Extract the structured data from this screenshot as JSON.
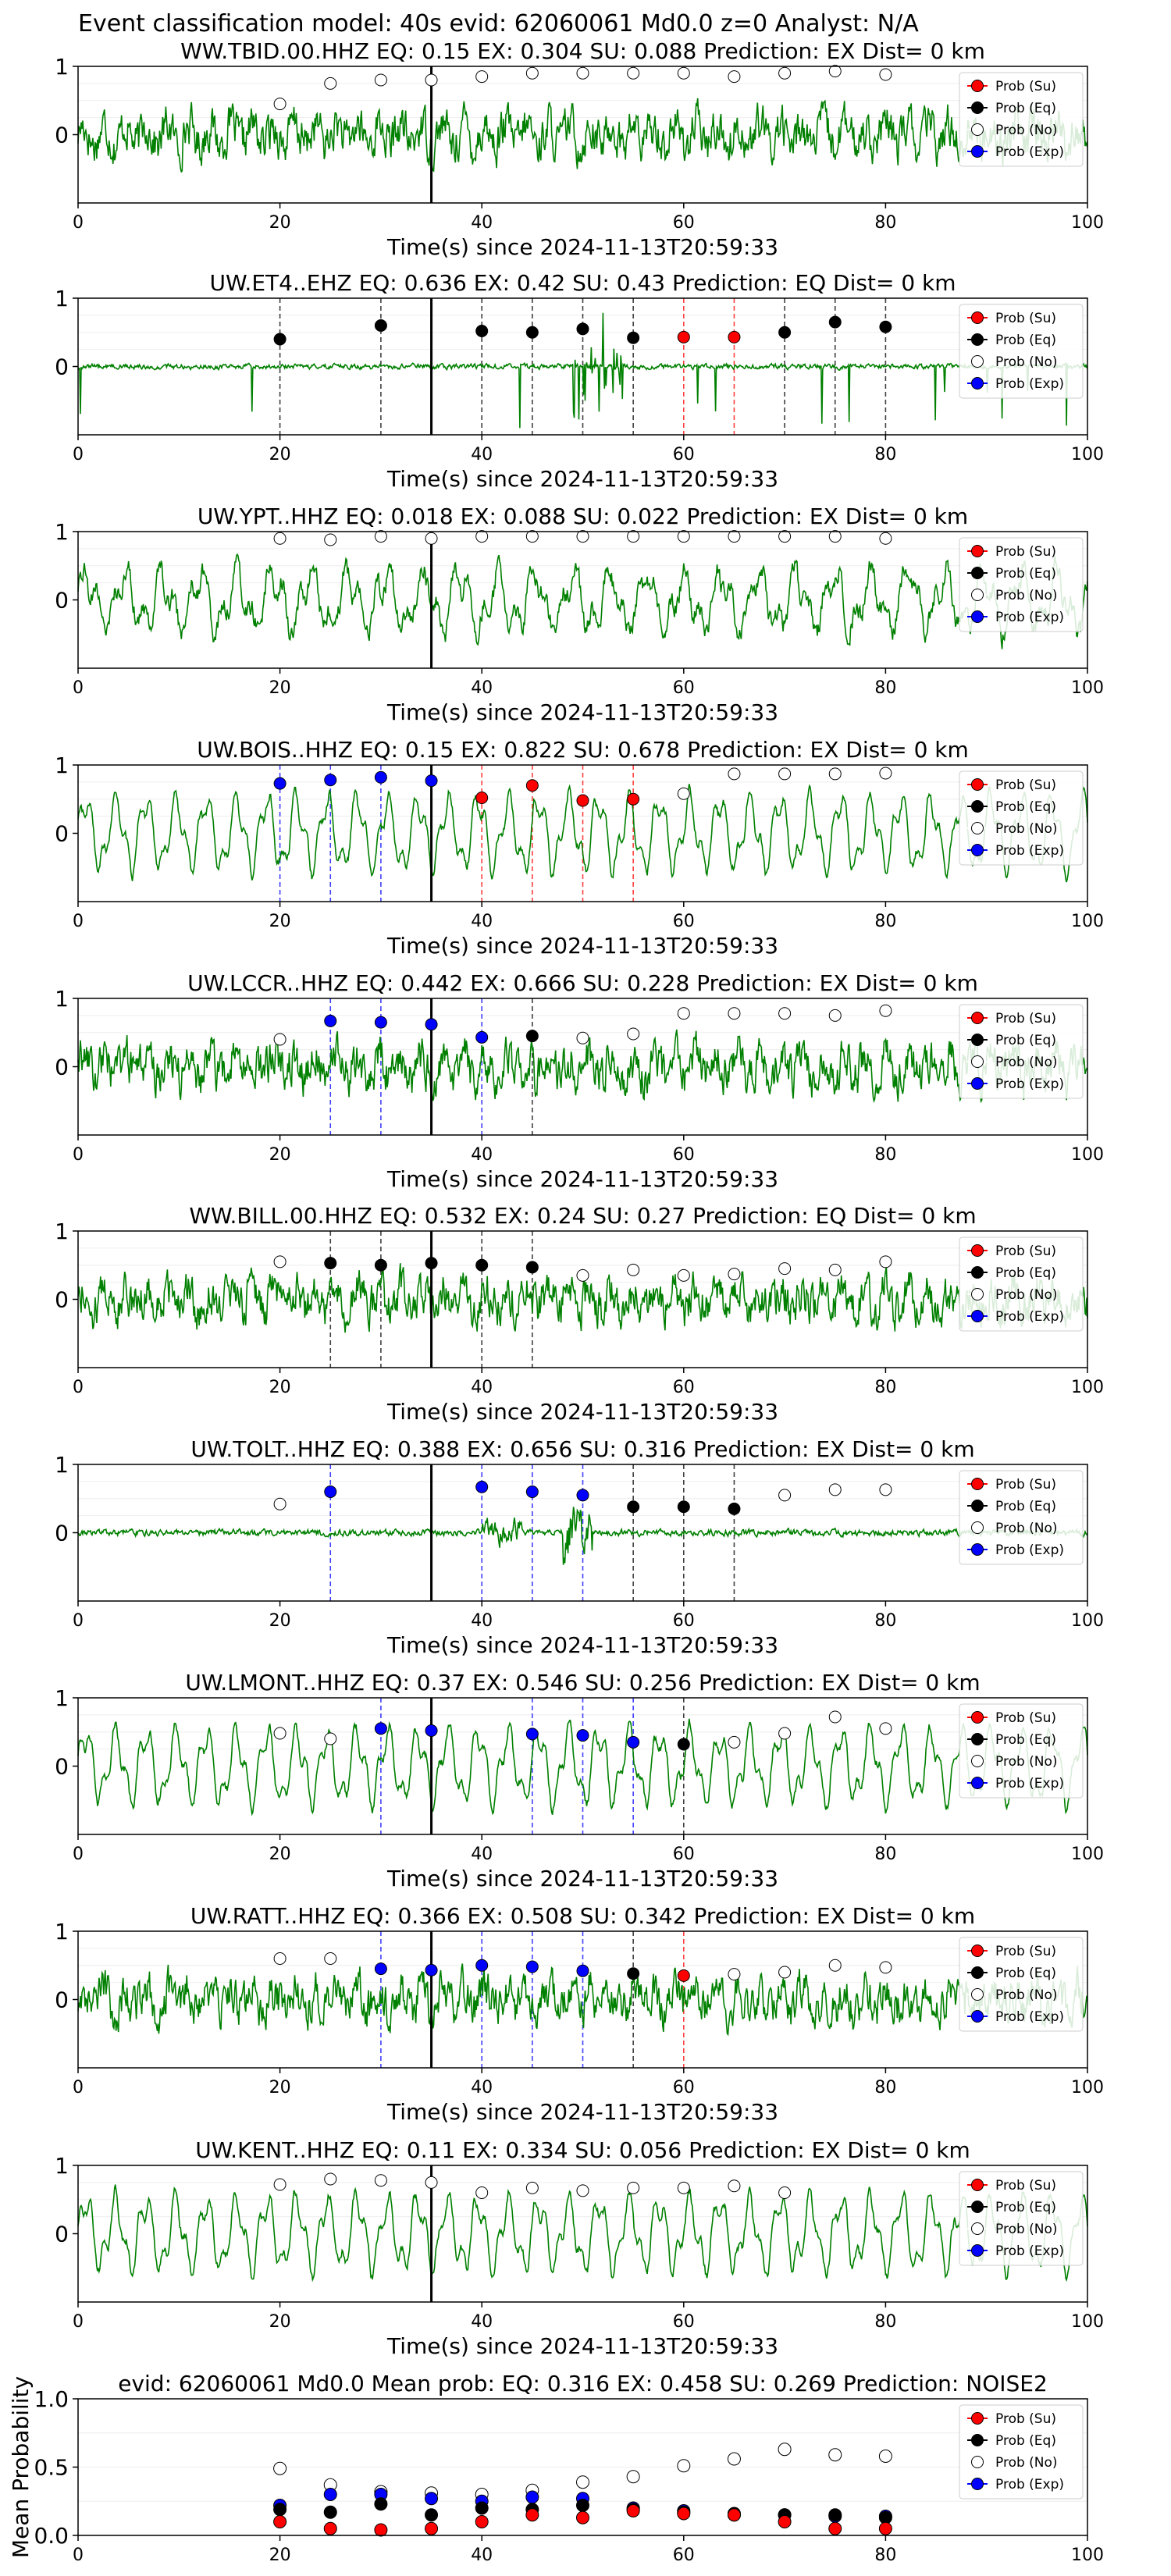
{
  "figure_title": "Event classification model: 40s evid: 62060061 Md0.0 z=0 Analyst: N/A",
  "legend_labels": [
    "Prob (Su)",
    "Prob (Eq)",
    "Prob (No)",
    "Prob (Exp)"
  ],
  "colors": {
    "su": "#ff0000",
    "eq": "#000000",
    "no": "#ffffff",
    "exp": "#0000ff",
    "waveform": "#008000"
  },
  "chart_data": [
    {
      "type": "line",
      "title": "WW.TBID.00.HHZ   EQ: 0.15   EX: 0.304   SU: 0.088   Prediction: EX    Dist= 0 km",
      "xlabel": "Time(s) since 2024-11-13T20:59:33",
      "ylabel": "",
      "xlim": [
        0,
        100
      ],
      "ylim": [
        -1,
        1
      ],
      "xticks": [
        0,
        20,
        40,
        60,
        80,
        100
      ],
      "yticks": [
        0,
        1
      ],
      "origin_time": 35,
      "waveform": "noise",
      "points": [
        {
          "x": 20,
          "y": 0.45,
          "c": "no"
        },
        {
          "x": 25,
          "y": 0.75,
          "c": "no"
        },
        {
          "x": 30,
          "y": 0.8,
          "c": "no"
        },
        {
          "x": 35,
          "y": 0.8,
          "c": "no"
        },
        {
          "x": 40,
          "y": 0.85,
          "c": "no"
        },
        {
          "x": 45,
          "y": 0.9,
          "c": "no"
        },
        {
          "x": 50,
          "y": 0.9,
          "c": "no"
        },
        {
          "x": 55,
          "y": 0.9,
          "c": "no"
        },
        {
          "x": 60,
          "y": 0.9,
          "c": "no"
        },
        {
          "x": 65,
          "y": 0.85,
          "c": "no"
        },
        {
          "x": 70,
          "y": 0.9,
          "c": "no"
        },
        {
          "x": 75,
          "y": 0.93,
          "c": "no"
        },
        {
          "x": 80,
          "y": 0.88,
          "c": "no"
        }
      ]
    },
    {
      "type": "line",
      "title": "UW.ET4..EHZ   EQ: 0.636   EX: 0.42   SU: 0.43   Prediction: EQ    Dist= 0 km",
      "xlabel": "Time(s) since 2024-11-13T20:59:33",
      "ylabel": "",
      "xlim": [
        0,
        100
      ],
      "ylim": [
        -1,
        1
      ],
      "xticks": [
        0,
        20,
        40,
        60,
        80,
        100
      ],
      "yticks": [
        0,
        1
      ],
      "origin_time": 35,
      "waveform": "spiky",
      "points": [
        {
          "x": 20,
          "y": 0.4,
          "c": "eq"
        },
        {
          "x": 30,
          "y": 0.6,
          "c": "eq"
        },
        {
          "x": 40,
          "y": 0.52,
          "c": "eq"
        },
        {
          "x": 45,
          "y": 0.5,
          "c": "eq"
        },
        {
          "x": 50,
          "y": 0.55,
          "c": "eq"
        },
        {
          "x": 55,
          "y": 0.42,
          "c": "eq"
        },
        {
          "x": 60,
          "y": 0.43,
          "c": "su"
        },
        {
          "x": 65,
          "y": 0.43,
          "c": "su"
        },
        {
          "x": 70,
          "y": 0.5,
          "c": "eq"
        },
        {
          "x": 75,
          "y": 0.65,
          "c": "eq"
        },
        {
          "x": 80,
          "y": 0.58,
          "c": "eq"
        }
      ]
    },
    {
      "type": "line",
      "title": "UW.YPT..HHZ   EQ: 0.018   EX: 0.088   SU: 0.022   Prediction: EX    Dist= 0 km",
      "xlabel": "Time(s) since 2024-11-13T20:59:33",
      "ylabel": "",
      "xlim": [
        0,
        100
      ],
      "ylim": [
        -1,
        1
      ],
      "xticks": [
        0,
        20,
        40,
        60,
        80,
        100
      ],
      "yticks": [
        0,
        1
      ],
      "origin_time": 35,
      "waveform": "mid",
      "points": [
        {
          "x": 20,
          "y": 0.9,
          "c": "no"
        },
        {
          "x": 25,
          "y": 0.88,
          "c": "no"
        },
        {
          "x": 30,
          "y": 0.93,
          "c": "no"
        },
        {
          "x": 35,
          "y": 0.9,
          "c": "no"
        },
        {
          "x": 40,
          "y": 0.93,
          "c": "no"
        },
        {
          "x": 45,
          "y": 0.93,
          "c": "no"
        },
        {
          "x": 50,
          "y": 0.93,
          "c": "no"
        },
        {
          "x": 55,
          "y": 0.93,
          "c": "no"
        },
        {
          "x": 60,
          "y": 0.93,
          "c": "no"
        },
        {
          "x": 65,
          "y": 0.93,
          "c": "no"
        },
        {
          "x": 70,
          "y": 0.93,
          "c": "no"
        },
        {
          "x": 75,
          "y": 0.93,
          "c": "no"
        },
        {
          "x": 80,
          "y": 0.9,
          "c": "no"
        }
      ]
    },
    {
      "type": "line",
      "title": "UW.BOIS..HHZ   EQ: 0.15   EX: 0.822   SU: 0.678   Prediction: EX    Dist= 0 km",
      "xlabel": "Time(s) since 2024-11-13T20:59:33",
      "ylabel": "",
      "xlim": [
        0,
        100
      ],
      "ylim": [
        -1,
        1
      ],
      "xticks": [
        0,
        20,
        40,
        60,
        80,
        100
      ],
      "yticks": [
        0,
        1
      ],
      "origin_time": 35,
      "waveform": "smooth",
      "points": [
        {
          "x": 20,
          "y": 0.73,
          "c": "exp"
        },
        {
          "x": 25,
          "y": 0.78,
          "c": "exp"
        },
        {
          "x": 30,
          "y": 0.82,
          "c": "exp"
        },
        {
          "x": 35,
          "y": 0.77,
          "c": "exp"
        },
        {
          "x": 40,
          "y": 0.52,
          "c": "su"
        },
        {
          "x": 45,
          "y": 0.7,
          "c": "su"
        },
        {
          "x": 50,
          "y": 0.48,
          "c": "su"
        },
        {
          "x": 55,
          "y": 0.5,
          "c": "su"
        },
        {
          "x": 60,
          "y": 0.58,
          "c": "no"
        },
        {
          "x": 65,
          "y": 0.87,
          "c": "no"
        },
        {
          "x": 70,
          "y": 0.87,
          "c": "no"
        },
        {
          "x": 75,
          "y": 0.87,
          "c": "no"
        },
        {
          "x": 80,
          "y": 0.88,
          "c": "no"
        }
      ]
    },
    {
      "type": "line",
      "title": "UW.LCCR..HHZ   EQ: 0.442   EX: 0.666   SU: 0.228   Prediction: EX    Dist= 0 km",
      "xlabel": "Time(s) since 2024-11-13T20:59:33",
      "ylabel": "",
      "xlim": [
        0,
        100
      ],
      "ylim": [
        -1,
        1
      ],
      "xticks": [
        0,
        20,
        40,
        60,
        80,
        100
      ],
      "yticks": [
        0,
        1
      ],
      "origin_time": 35,
      "waveform": "noise",
      "points": [
        {
          "x": 20,
          "y": 0.4,
          "c": "no"
        },
        {
          "x": 25,
          "y": 0.67,
          "c": "exp"
        },
        {
          "x": 30,
          "y": 0.65,
          "c": "exp"
        },
        {
          "x": 35,
          "y": 0.62,
          "c": "exp"
        },
        {
          "x": 40,
          "y": 0.43,
          "c": "exp"
        },
        {
          "x": 45,
          "y": 0.45,
          "c": "eq"
        },
        {
          "x": 50,
          "y": 0.42,
          "c": "no"
        },
        {
          "x": 55,
          "y": 0.48,
          "c": "no"
        },
        {
          "x": 60,
          "y": 0.78,
          "c": "no"
        },
        {
          "x": 65,
          "y": 0.78,
          "c": "no"
        },
        {
          "x": 70,
          "y": 0.78,
          "c": "no"
        },
        {
          "x": 75,
          "y": 0.75,
          "c": "no"
        },
        {
          "x": 80,
          "y": 0.82,
          "c": "no"
        }
      ]
    },
    {
      "type": "line",
      "title": "WW.BILL.00.HHZ   EQ: 0.532   EX: 0.24   SU: 0.27   Prediction: EQ    Dist= 0 km",
      "xlabel": "Time(s) since 2024-11-13T20:59:33",
      "ylabel": "",
      "xlim": [
        0,
        100
      ],
      "ylim": [
        -1,
        1
      ],
      "xticks": [
        0,
        20,
        40,
        60,
        80,
        100
      ],
      "yticks": [
        0,
        1
      ],
      "origin_time": 35,
      "waveform": "noise",
      "points": [
        {
          "x": 20,
          "y": 0.55,
          "c": "no"
        },
        {
          "x": 25,
          "y": 0.53,
          "c": "eq"
        },
        {
          "x": 30,
          "y": 0.5,
          "c": "eq"
        },
        {
          "x": 35,
          "y": 0.53,
          "c": "eq"
        },
        {
          "x": 40,
          "y": 0.5,
          "c": "eq"
        },
        {
          "x": 45,
          "y": 0.47,
          "c": "eq"
        },
        {
          "x": 50,
          "y": 0.35,
          "c": "no"
        },
        {
          "x": 55,
          "y": 0.43,
          "c": "no"
        },
        {
          "x": 60,
          "y": 0.35,
          "c": "no"
        },
        {
          "x": 65,
          "y": 0.37,
          "c": "no"
        },
        {
          "x": 70,
          "y": 0.45,
          "c": "no"
        },
        {
          "x": 75,
          "y": 0.43,
          "c": "no"
        },
        {
          "x": 80,
          "y": 0.55,
          "c": "no"
        }
      ]
    },
    {
      "type": "line",
      "title": "UW.TOLT..HHZ   EQ: 0.388   EX: 0.656   SU: 0.316   Prediction: EX    Dist= 0 km",
      "xlabel": "Time(s) since 2024-11-13T20:59:33",
      "ylabel": "",
      "xlim": [
        0,
        100
      ],
      "ylim": [
        -1,
        1
      ],
      "xticks": [
        0,
        20,
        40,
        60,
        80,
        100
      ],
      "yticks": [
        0,
        1
      ],
      "origin_time": 35,
      "waveform": "quiet",
      "points": [
        {
          "x": 20,
          "y": 0.42,
          "c": "no"
        },
        {
          "x": 25,
          "y": 0.6,
          "c": "exp"
        },
        {
          "x": 40,
          "y": 0.67,
          "c": "exp"
        },
        {
          "x": 45,
          "y": 0.6,
          "c": "exp"
        },
        {
          "x": 50,
          "y": 0.55,
          "c": "exp"
        },
        {
          "x": 55,
          "y": 0.38,
          "c": "eq"
        },
        {
          "x": 60,
          "y": 0.38,
          "c": "eq"
        },
        {
          "x": 65,
          "y": 0.35,
          "c": "eq"
        },
        {
          "x": 70,
          "y": 0.55,
          "c": "no"
        },
        {
          "x": 75,
          "y": 0.63,
          "c": "no"
        },
        {
          "x": 80,
          "y": 0.63,
          "c": "no"
        }
      ]
    },
    {
      "type": "line",
      "title": "UW.LMONT..HHZ   EQ: 0.37   EX: 0.546   SU: 0.256   Prediction: EX    Dist= 0 km",
      "xlabel": "Time(s) since 2024-11-13T20:59:33",
      "ylabel": "",
      "xlim": [
        0,
        100
      ],
      "ylim": [
        -1,
        1
      ],
      "xticks": [
        0,
        20,
        40,
        60,
        80,
        100
      ],
      "yticks": [
        0,
        1
      ],
      "origin_time": 35,
      "waveform": "smooth",
      "points": [
        {
          "x": 20,
          "y": 0.48,
          "c": "no"
        },
        {
          "x": 25,
          "y": 0.4,
          "c": "no"
        },
        {
          "x": 30,
          "y": 0.55,
          "c": "exp"
        },
        {
          "x": 35,
          "y": 0.52,
          "c": "exp"
        },
        {
          "x": 45,
          "y": 0.47,
          "c": "exp"
        },
        {
          "x": 50,
          "y": 0.45,
          "c": "exp"
        },
        {
          "x": 55,
          "y": 0.35,
          "c": "exp"
        },
        {
          "x": 60,
          "y": 0.32,
          "c": "eq"
        },
        {
          "x": 65,
          "y": 0.35,
          "c": "no"
        },
        {
          "x": 70,
          "y": 0.48,
          "c": "no"
        },
        {
          "x": 75,
          "y": 0.72,
          "c": "no"
        },
        {
          "x": 80,
          "y": 0.55,
          "c": "no"
        }
      ]
    },
    {
      "type": "line",
      "title": "UW.RATT..HHZ   EQ: 0.366   EX: 0.508   SU: 0.342   Prediction: EX    Dist= 0 km",
      "xlabel": "Time(s) since 2024-11-13T20:59:33",
      "ylabel": "",
      "xlim": [
        0,
        100
      ],
      "ylim": [
        -1,
        1
      ],
      "xticks": [
        0,
        20,
        40,
        60,
        80,
        100
      ],
      "yticks": [
        0,
        1
      ],
      "origin_time": 35,
      "waveform": "noise",
      "points": [
        {
          "x": 20,
          "y": 0.6,
          "c": "no"
        },
        {
          "x": 25,
          "y": 0.6,
          "c": "no"
        },
        {
          "x": 30,
          "y": 0.45,
          "c": "exp"
        },
        {
          "x": 35,
          "y": 0.43,
          "c": "exp"
        },
        {
          "x": 40,
          "y": 0.5,
          "c": "exp"
        },
        {
          "x": 45,
          "y": 0.48,
          "c": "exp"
        },
        {
          "x": 50,
          "y": 0.42,
          "c": "exp"
        },
        {
          "x": 55,
          "y": 0.38,
          "c": "eq"
        },
        {
          "x": 60,
          "y": 0.35,
          "c": "su"
        },
        {
          "x": 65,
          "y": 0.37,
          "c": "no"
        },
        {
          "x": 70,
          "y": 0.4,
          "c": "no"
        },
        {
          "x": 75,
          "y": 0.5,
          "c": "no"
        },
        {
          "x": 80,
          "y": 0.47,
          "c": "no"
        }
      ]
    },
    {
      "type": "line",
      "title": "UW.KENT..HHZ   EQ: 0.11   EX: 0.334   SU: 0.056   Prediction: EX    Dist= 0 km",
      "xlabel": "Time(s) since 2024-11-13T20:59:33",
      "ylabel": "",
      "xlim": [
        0,
        100
      ],
      "ylim": [
        -1,
        1
      ],
      "xticks": [
        0,
        20,
        40,
        60,
        80,
        100
      ],
      "yticks": [
        0,
        1
      ],
      "origin_time": 35,
      "waveform": "smooth",
      "points": [
        {
          "x": 20,
          "y": 0.72,
          "c": "no"
        },
        {
          "x": 25,
          "y": 0.8,
          "c": "no"
        },
        {
          "x": 30,
          "y": 0.78,
          "c": "no"
        },
        {
          "x": 35,
          "y": 0.75,
          "c": "no"
        },
        {
          "x": 40,
          "y": 0.6,
          "c": "no"
        },
        {
          "x": 45,
          "y": 0.67,
          "c": "no"
        },
        {
          "x": 50,
          "y": 0.63,
          "c": "no"
        },
        {
          "x": 55,
          "y": 0.67,
          "c": "no"
        },
        {
          "x": 60,
          "y": 0.67,
          "c": "no"
        },
        {
          "x": 65,
          "y": 0.7,
          "c": "no"
        },
        {
          "x": 70,
          "y": 0.6,
          "c": "no"
        }
      ]
    },
    {
      "type": "scatter",
      "title": "evid: 62060061   Md0.0   Mean prob:   EQ: 0.316   EX: 0.458   SU: 0.269   Prediction: NOISE2",
      "xlabel": "",
      "ylabel": "Mean Probability",
      "xlim": [
        0,
        100
      ],
      "ylim": [
        0,
        1
      ],
      "xticks": [
        0,
        20,
        40,
        60,
        80,
        100
      ],
      "yticks": [
        0.0,
        0.5,
        1.0
      ],
      "ytick_labels": [
        "0.0",
        "0.5",
        "1.0"
      ],
      "series": [
        {
          "name": "Prob (No)",
          "c": "no",
          "x": [
            20,
            25,
            30,
            35,
            40,
            45,
            50,
            55,
            60,
            65,
            70,
            75,
            80
          ],
          "y": [
            0.49,
            0.37,
            0.32,
            0.31,
            0.3,
            0.33,
            0.39,
            0.43,
            0.51,
            0.56,
            0.63,
            0.59,
            0.58
          ]
        },
        {
          "name": "Prob (Exp)",
          "c": "exp",
          "x": [
            20,
            25,
            30,
            35,
            40,
            45,
            50,
            55,
            60,
            65,
            70,
            75,
            80
          ],
          "y": [
            0.22,
            0.3,
            0.3,
            0.27,
            0.25,
            0.28,
            0.27,
            0.2,
            0.18,
            0.15,
            0.15,
            0.14,
            0.14
          ]
        },
        {
          "name": "Prob (Eq)",
          "c": "eq",
          "x": [
            20,
            25,
            30,
            35,
            40,
            45,
            50,
            55,
            60,
            65,
            70,
            75,
            80
          ],
          "y": [
            0.19,
            0.17,
            0.23,
            0.15,
            0.2,
            0.19,
            0.22,
            0.19,
            0.17,
            0.16,
            0.15,
            0.15,
            0.13
          ]
        },
        {
          "name": "Prob (Su)",
          "c": "su",
          "x": [
            20,
            25,
            30,
            35,
            40,
            45,
            50,
            55,
            60,
            65,
            70,
            75,
            80
          ],
          "y": [
            0.1,
            0.05,
            0.04,
            0.05,
            0.1,
            0.15,
            0.13,
            0.18,
            0.16,
            0.15,
            0.1,
            0.05,
            0.05
          ]
        }
      ]
    }
  ]
}
